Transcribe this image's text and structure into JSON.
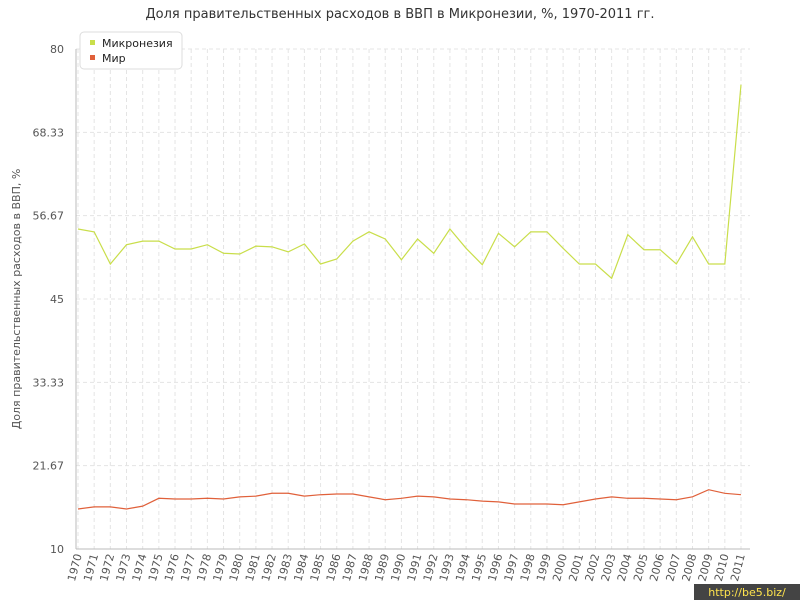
{
  "chart_data": {
    "type": "line",
    "title": "Доля правительственных расходов в ВВП в Микронезии, %, 1970-2011 гг.",
    "y_label": "Доля правительственных расходов в ВВП, %",
    "watermark": "http://be5.biz/",
    "categories": [
      "1970",
      "1971",
      "1972",
      "1973",
      "1974",
      "1975",
      "1976",
      "1977",
      "1978",
      "1979",
      "1980",
      "1981",
      "1982",
      "1983",
      "1984",
      "1985",
      "1986",
      "1987",
      "1988",
      "1989",
      "1990",
      "1991",
      "1992",
      "1993",
      "1994",
      "1995",
      "1996",
      "1997",
      "1998",
      "1999",
      "2000",
      "2001",
      "2002",
      "2003",
      "2004",
      "2005",
      "2006",
      "2007",
      "2008",
      "2009",
      "2010",
      "2011"
    ],
    "series": [
      {
        "name": "Микронезия",
        "color": "#c9de4a",
        "values": [
          54.8,
          54.4,
          49.9,
          52.6,
          53.1,
          53.1,
          52.0,
          52.0,
          52.6,
          51.4,
          51.3,
          52.4,
          52.3,
          51.6,
          52.7,
          49.9,
          50.6,
          53.1,
          54.4,
          53.4,
          50.5,
          53.4,
          51.4,
          54.8,
          52.1,
          49.8,
          54.2,
          52.3,
          54.4,
          54.4,
          52.1,
          49.9,
          49.9,
          47.9,
          54.0,
          51.9,
          51.9,
          49.9,
          53.7,
          49.9,
          49.9,
          75.0
        ]
      },
      {
        "name": "Мир",
        "color": "#e0603a",
        "values": [
          15.6,
          15.9,
          15.9,
          15.6,
          16.0,
          17.1,
          17.0,
          17.0,
          17.1,
          17.0,
          17.3,
          17.4,
          17.8,
          17.8,
          17.4,
          17.6,
          17.7,
          17.7,
          17.3,
          16.9,
          17.1,
          17.4,
          17.3,
          17.0,
          16.9,
          16.7,
          16.6,
          16.3,
          16.3,
          16.3,
          16.2,
          16.6,
          17.0,
          17.3,
          17.1,
          17.1,
          17.0,
          16.9,
          17.3,
          18.3,
          17.8,
          17.6
        ]
      }
    ],
    "ylim": [
      10,
      80
    ],
    "yticks": [
      10,
      21.67,
      33.33,
      45,
      56.67,
      68.33,
      80
    ],
    "grid": true
  }
}
